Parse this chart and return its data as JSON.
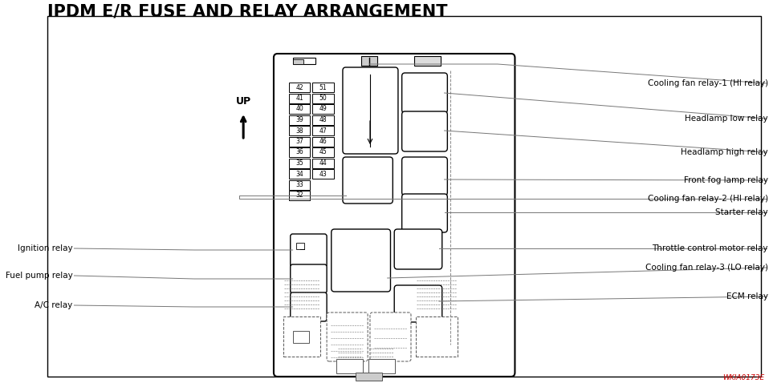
{
  "title": "IPDM E/R FUSE AND RELAY ARRANGEMENT",
  "title_fontsize": 15,
  "bg_color": "#ffffff",
  "watermark": "WKIA0173E",
  "fig_width": 9.58,
  "fig_height": 4.83,
  "fuse_left": [
    "42",
    "41",
    "40",
    "39",
    "38",
    "37",
    "36",
    "35",
    "34",
    "33",
    "32"
  ],
  "fuse_right": [
    "51",
    "50",
    "49",
    "48",
    "47",
    "46",
    "45",
    "44",
    "43"
  ],
  "labels_right": [
    "Cooling fan relay-1 (HI relay)",
    "Headlamp low relay",
    "Headlamp high relay",
    "Front fog lamp relay",
    "Cooling fan relay-2 (HI relay)",
    "Starter relay",
    "Throttle control motor relay",
    "Cooling fan relay-3 (LO relay)",
    "ECM relay"
  ],
  "labels_left": [
    "Ignition relay",
    "Fuel pump relay",
    "A/C relay"
  ],
  "up_label": "UP"
}
